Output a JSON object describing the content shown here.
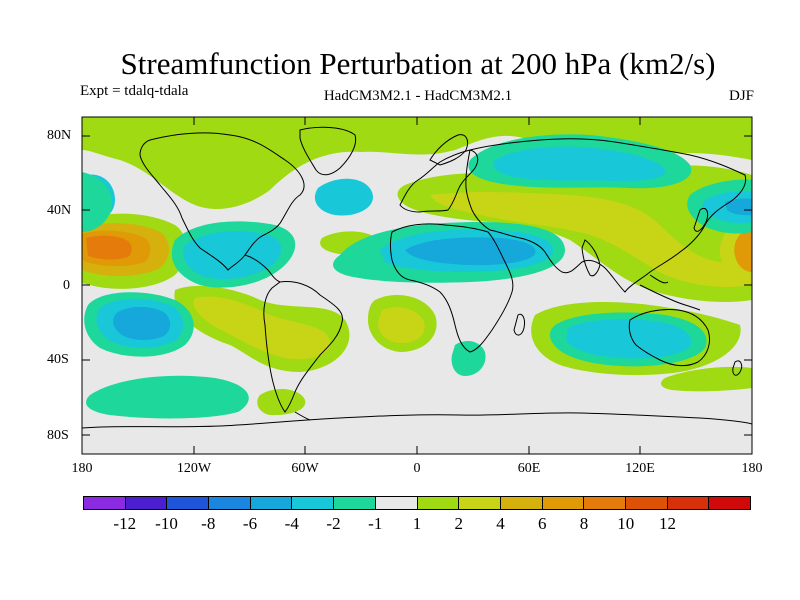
{
  "title": "Streamfunction Perturbation at 200 hPa (km2/s)",
  "experiment": "Expt = tdalq-tdala",
  "models": "HadCM3M2.1 - HadCM3M2.1",
  "season": "DJF",
  "lat_labels": [
    "80N",
    "40N",
    "0",
    "40S",
    "80S"
  ],
  "lon_labels": [
    "180",
    "120W",
    "60W",
    "0",
    "60E",
    "120E",
    "180"
  ],
  "colorbar": {
    "colors": [
      "#8a2be2",
      "#4b1fd0",
      "#1f55d8",
      "#1a86df",
      "#16a7db",
      "#18c8d8",
      "#1ed79a",
      "#e8e8e8",
      "#9fda13",
      "#c8d416",
      "#d6b10d",
      "#e09a08",
      "#e57b0a",
      "#de5208",
      "#d8300a",
      "#d00a0a"
    ],
    "labels": [
      "-12",
      "-10",
      "-8",
      "-6",
      "-4",
      "-2",
      "-1",
      "1",
      "2",
      "4",
      "6",
      "8",
      "10",
      "12"
    ]
  }
}
